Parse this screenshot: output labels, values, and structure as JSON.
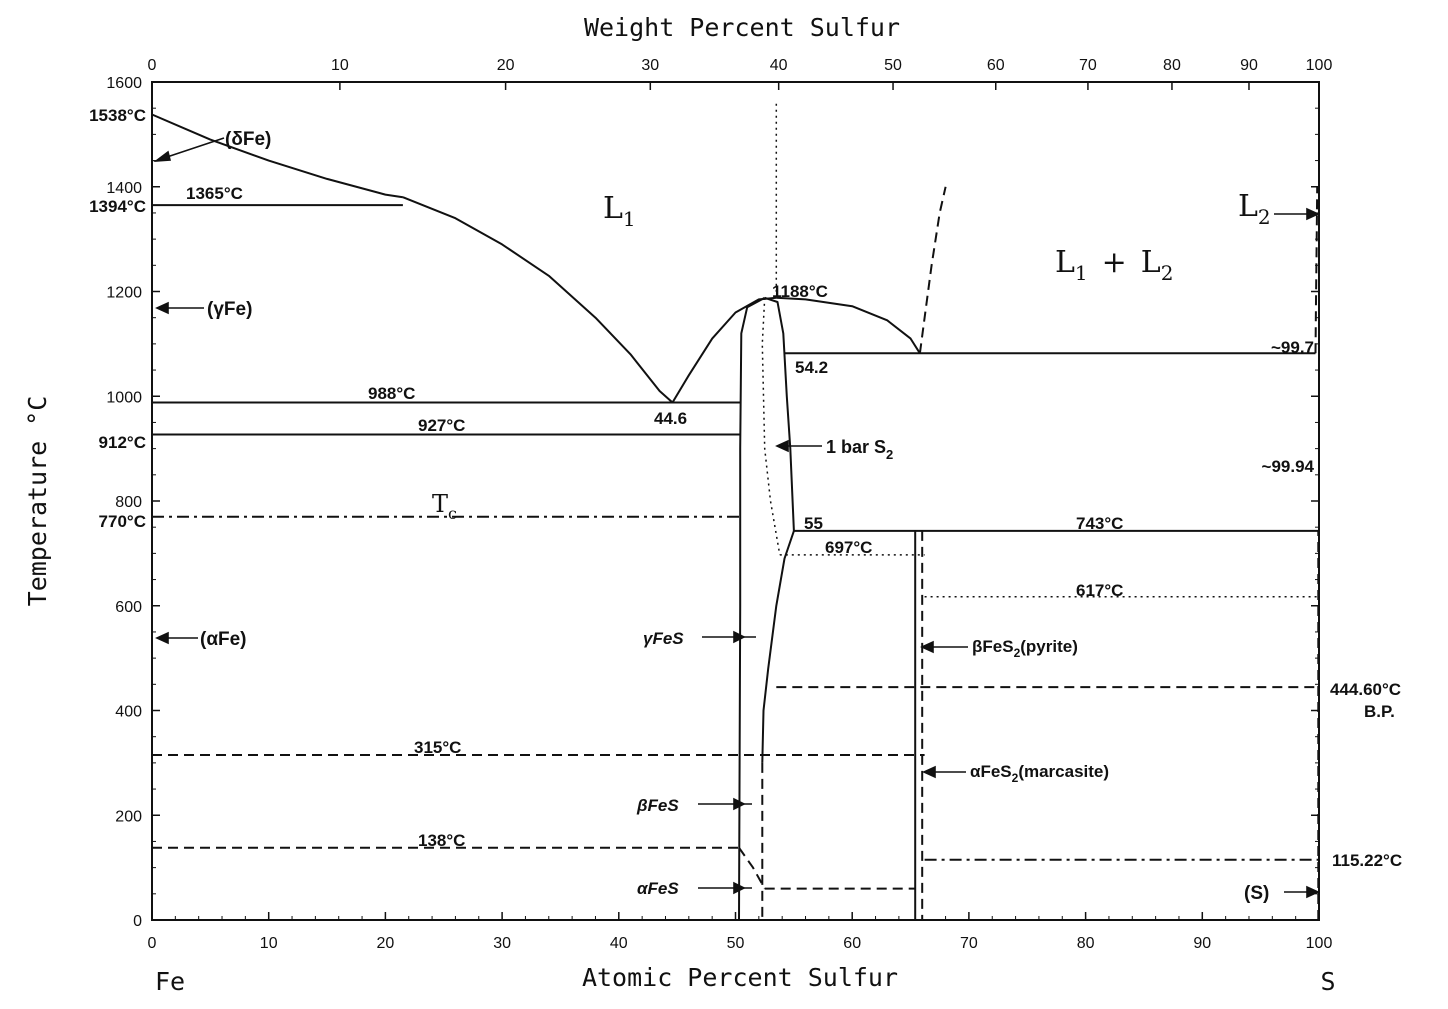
{
  "chart_data": {
    "type": "phase-diagram",
    "title": "",
    "xlabel": "Atomic Percent Sulfur",
    "x2label": "Weight Percent Sulfur",
    "ylabel": "Temperature °C",
    "xlim": [
      0,
      100
    ],
    "ylim": [
      0,
      1600
    ],
    "x_ticks": [
      0,
      10,
      20,
      30,
      40,
      50,
      60,
      70,
      80,
      90,
      100
    ],
    "y_ticks": [
      0,
      200,
      400,
      600,
      800,
      1000,
      1200,
      1400,
      1600
    ],
    "x2_ticks": [
      {
        "label": "0",
        "at_pct": 0
      },
      {
        "label": "10",
        "at_pct": 16.1
      },
      {
        "label": "20",
        "at_pct": 30.3
      },
      {
        "label": "30",
        "at_pct": 42.7
      },
      {
        "label": "40",
        "at_pct": 53.7
      },
      {
        "label": "50",
        "at_pct": 63.5
      },
      {
        "label": "60",
        "at_pct": 72.3
      },
      {
        "label": "70",
        "at_pct": 80.2
      },
      {
        "label": "80",
        "at_pct": 87.4
      },
      {
        "label": "90",
        "at_pct": 94.0
      },
      {
        "label": "100",
        "at_pct": 100
      }
    ],
    "left_element": "Fe",
    "right_element": "S",
    "annotations": {
      "t1538": "1538°C",
      "t1394": "1394°C",
      "t912": "912°C",
      "t770": "770°C",
      "t1365": "1365°C",
      "t988": "988°C",
      "t927": "927°C",
      "t1188": "1188°C",
      "c54_2": "54.2",
      "c44_6": "44.6",
      "c55": "55",
      "t697": "697°C",
      "t743": "743°C",
      "t617": "617°C",
      "t315": "315°C",
      "t138": "138°C",
      "c99_7": "~99.7",
      "c99_94": "~99.94",
      "t444": "444.60°C",
      "bp": "B.P.",
      "t115": "115.22°C",
      "bar": "1 bar S",
      "bar_sub": "2",
      "tc": "T",
      "tc_sub": "c",
      "delta_fe": "(δFe)",
      "gamma_fe": "(γFe)",
      "alpha_fe": "(αFe)",
      "gamma_fes": "γFeS",
      "beta_fes": "βFeS",
      "alpha_fes": "αFeS",
      "pyrite_pre": "βFeS",
      "pyrite_sub": "2",
      "pyrite_post": "(pyrite)",
      "marc_pre": "αFeS",
      "marc_sub": "2",
      "marc_post": "(marcasite)",
      "s_solid": "(S)"
    },
    "phase_labels": {
      "l1": "L",
      "l1_sub": "1",
      "l2": "L",
      "l2_sub": "2",
      "l1l2_a": "L",
      "l1l2_a_sub": "1",
      "l1l2_plus": "+",
      "l1l2_b": "L",
      "l1l2_b_sub": "2"
    },
    "lines": [
      {
        "name": "delta-liquidus",
        "style": "solid",
        "points": [
          [
            0,
            1538
          ],
          [
            5,
            1490
          ],
          [
            10,
            1450
          ],
          [
            15,
            1415
          ],
          [
            20,
            1385
          ],
          [
            21.5,
            1380
          ]
        ]
      },
      {
        "name": "fe-liquidus",
        "style": "solid",
        "points": [
          [
            21.5,
            1380
          ],
          [
            26,
            1340
          ],
          [
            30,
            1290
          ],
          [
            34,
            1230
          ],
          [
            38,
            1150
          ],
          [
            41,
            1080
          ],
          [
            43.5,
            1010
          ],
          [
            44.6,
            988
          ]
        ]
      },
      {
        "name": "fes-liquidus-left",
        "style": "solid",
        "points": [
          [
            44.6,
            988
          ],
          [
            46,
            1040
          ],
          [
            48,
            1110
          ],
          [
            50,
            1160
          ],
          [
            52,
            1185
          ],
          [
            53.5,
            1188
          ]
        ]
      },
      {
        "name": "liquidus-right",
        "style": "solid",
        "points": [
          [
            53.5,
            1188
          ],
          [
            56,
            1185
          ],
          [
            60,
            1172
          ],
          [
            63,
            1145
          ],
          [
            65,
            1110
          ],
          [
            65.8,
            1082
          ]
        ]
      },
      {
        "name": "miscibility-gap",
        "style": "dashed",
        "points": [
          [
            65.8,
            1082
          ],
          [
            66.2,
            1150
          ],
          [
            66.8,
            1250
          ],
          [
            67.5,
            1350
          ],
          [
            68,
            1400
          ]
        ]
      },
      {
        "name": "l2-side",
        "style": "dashed",
        "points": [
          [
            99.7,
            1082
          ],
          [
            99.75,
            1200
          ],
          [
            99.8,
            1300
          ],
          [
            99.85,
            1400
          ]
        ]
      },
      {
        "name": "eutectic-988",
        "style": "solid",
        "points": [
          [
            0,
            988
          ],
          [
            50.4,
            988
          ]
        ]
      },
      {
        "name": "horiz-1365",
        "style": "solid",
        "points": [
          [
            0,
            1365
          ],
          [
            21.5,
            1365
          ]
        ]
      },
      {
        "name": "horiz-927",
        "style": "solid",
        "points": [
          [
            0,
            927
          ],
          [
            50.4,
            927
          ]
        ]
      },
      {
        "name": "monotectic-1082",
        "style": "solid",
        "points": [
          [
            54.2,
            1082
          ],
          [
            99.7,
            1082
          ]
        ]
      },
      {
        "name": "eutectoid-743",
        "style": "solid",
        "points": [
          [
            55,
            743
          ],
          [
            99.94,
            743
          ]
        ]
      },
      {
        "name": "curie-770",
        "style": "dashdot",
        "points": [
          [
            0,
            770
          ],
          [
            50.4,
            770
          ]
        ]
      },
      {
        "name": "horiz-697",
        "style": "dotted",
        "points": [
          [
            53.8,
            697
          ],
          [
            66.2,
            697
          ]
        ]
      },
      {
        "name": "horiz-617",
        "style": "dotted",
        "points": [
          [
            66.2,
            617
          ],
          [
            99.94,
            617
          ]
        ]
      },
      {
        "name": "horiz-444",
        "style": "dashed",
        "points": [
          [
            53.5,
            444.6
          ],
          [
            99.94,
            444.6
          ]
        ]
      },
      {
        "name": "horiz-315",
        "style": "dashed",
        "points": [
          [
            0,
            315
          ],
          [
            66.2,
            315
          ]
        ]
      },
      {
        "name": "horiz-138",
        "style": "dashed",
        "points": [
          [
            0,
            138
          ],
          [
            50.4,
            138
          ]
        ]
      },
      {
        "name": "horiz-115",
        "style": "dashdot",
        "points": [
          [
            66.2,
            115.22
          ],
          [
            99.94,
            115.22
          ]
        ]
      },
      {
        "name": "horiz-60",
        "style": "dashed",
        "points": [
          [
            52.5,
            60
          ],
          [
            65.4,
            60
          ]
        ]
      },
      {
        "name": "fes-138-join",
        "style": "dashed",
        "points": [
          [
            50.3,
            138
          ],
          [
            51.5,
            100
          ],
          [
            52.5,
            60
          ]
        ]
      },
      {
        "name": "fes-solvus-left",
        "style": "solid",
        "points": [
          [
            50.3,
            0
          ],
          [
            50.35,
            300
          ],
          [
            50.4,
            600
          ],
          [
            50.4,
            900
          ],
          [
            50.5,
            1120
          ],
          [
            51,
            1170
          ],
          [
            52.5,
            1188
          ]
        ]
      },
      {
        "name": "fes-solvus-right",
        "style": "solid",
        "points": [
          [
            52.5,
            1188
          ],
          [
            53.6,
            1180
          ],
          [
            54.1,
            1120
          ],
          [
            54.4,
            1000
          ],
          [
            54.7,
            900
          ],
          [
            55,
            743
          ]
        ]
      },
      {
        "name": "fes-inner-low",
        "style": "solid",
        "points": [
          [
            55,
            743
          ],
          [
            54.2,
            690
          ],
          [
            53.5,
            600
          ],
          [
            52.8,
            480
          ],
          [
            52.4,
            400
          ],
          [
            52.3,
            300
          ]
        ]
      },
      {
        "name": "fes-lower-dashed",
        "style": "dashed",
        "points": [
          [
            52.3,
            300
          ],
          [
            52.3,
            0
          ]
        ]
      },
      {
        "name": "one-bar-s2",
        "style": "dotted",
        "points": [
          [
            52.5,
            1188
          ],
          [
            52.3,
            1100
          ],
          [
            52.5,
            900
          ],
          [
            53,
            800
          ],
          [
            53.8,
            697
          ]
        ]
      },
      {
        "name": "one-bar-vertical",
        "style": "dotted",
        "points": [
          [
            53.5,
            1188
          ],
          [
            53.5,
            1560
          ]
        ]
      },
      {
        "name": "fes2-solid",
        "style": "solid",
        "points": [
          [
            65.4,
            743
          ],
          [
            65.4,
            0
          ]
        ]
      },
      {
        "name": "fes2-dashed",
        "style": "dashed",
        "points": [
          [
            66,
            743
          ],
          [
            66,
            0
          ]
        ]
      },
      {
        "name": "s-side",
        "style": "dashed",
        "points": [
          [
            99.94,
            0
          ],
          [
            99.94,
            743
          ]
        ]
      }
    ]
  }
}
